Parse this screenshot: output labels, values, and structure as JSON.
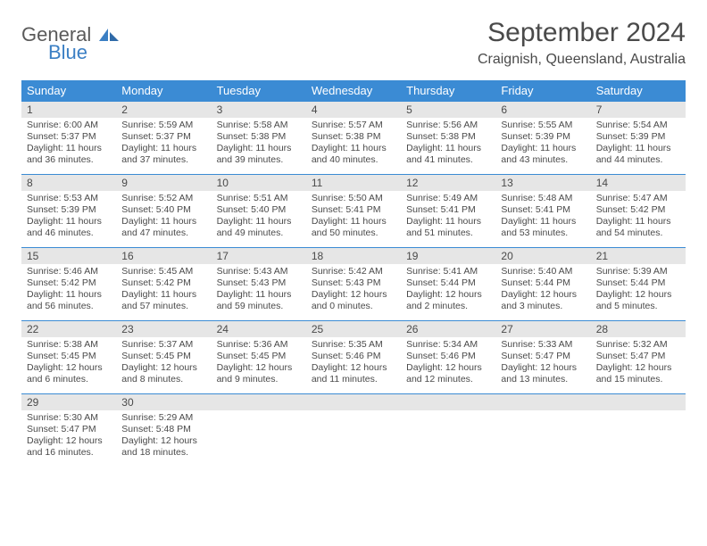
{
  "logo": {
    "text1": "General",
    "text2": "Blue"
  },
  "title": "September 2024",
  "location": "Craignish, Queensland, Australia",
  "colors": {
    "header_bg": "#3b8bd4",
    "header_text": "#ffffff",
    "daynum_bg": "#e6e6e6",
    "border": "#3b8bd4",
    "text": "#4a4a4a",
    "logo_blue": "#3b7fc4"
  },
  "weekdays": [
    "Sunday",
    "Monday",
    "Tuesday",
    "Wednesday",
    "Thursday",
    "Friday",
    "Saturday"
  ],
  "weeks": [
    [
      {
        "day": "1",
        "sunrise": "Sunrise: 6:00 AM",
        "sunset": "Sunset: 5:37 PM",
        "daylight1": "Daylight: 11 hours",
        "daylight2": "and 36 minutes."
      },
      {
        "day": "2",
        "sunrise": "Sunrise: 5:59 AM",
        "sunset": "Sunset: 5:37 PM",
        "daylight1": "Daylight: 11 hours",
        "daylight2": "and 37 minutes."
      },
      {
        "day": "3",
        "sunrise": "Sunrise: 5:58 AM",
        "sunset": "Sunset: 5:38 PM",
        "daylight1": "Daylight: 11 hours",
        "daylight2": "and 39 minutes."
      },
      {
        "day": "4",
        "sunrise": "Sunrise: 5:57 AM",
        "sunset": "Sunset: 5:38 PM",
        "daylight1": "Daylight: 11 hours",
        "daylight2": "and 40 minutes."
      },
      {
        "day": "5",
        "sunrise": "Sunrise: 5:56 AM",
        "sunset": "Sunset: 5:38 PM",
        "daylight1": "Daylight: 11 hours",
        "daylight2": "and 41 minutes."
      },
      {
        "day": "6",
        "sunrise": "Sunrise: 5:55 AM",
        "sunset": "Sunset: 5:39 PM",
        "daylight1": "Daylight: 11 hours",
        "daylight2": "and 43 minutes."
      },
      {
        "day": "7",
        "sunrise": "Sunrise: 5:54 AM",
        "sunset": "Sunset: 5:39 PM",
        "daylight1": "Daylight: 11 hours",
        "daylight2": "and 44 minutes."
      }
    ],
    [
      {
        "day": "8",
        "sunrise": "Sunrise: 5:53 AM",
        "sunset": "Sunset: 5:39 PM",
        "daylight1": "Daylight: 11 hours",
        "daylight2": "and 46 minutes."
      },
      {
        "day": "9",
        "sunrise": "Sunrise: 5:52 AM",
        "sunset": "Sunset: 5:40 PM",
        "daylight1": "Daylight: 11 hours",
        "daylight2": "and 47 minutes."
      },
      {
        "day": "10",
        "sunrise": "Sunrise: 5:51 AM",
        "sunset": "Sunset: 5:40 PM",
        "daylight1": "Daylight: 11 hours",
        "daylight2": "and 49 minutes."
      },
      {
        "day": "11",
        "sunrise": "Sunrise: 5:50 AM",
        "sunset": "Sunset: 5:41 PM",
        "daylight1": "Daylight: 11 hours",
        "daylight2": "and 50 minutes."
      },
      {
        "day": "12",
        "sunrise": "Sunrise: 5:49 AM",
        "sunset": "Sunset: 5:41 PM",
        "daylight1": "Daylight: 11 hours",
        "daylight2": "and 51 minutes."
      },
      {
        "day": "13",
        "sunrise": "Sunrise: 5:48 AM",
        "sunset": "Sunset: 5:41 PM",
        "daylight1": "Daylight: 11 hours",
        "daylight2": "and 53 minutes."
      },
      {
        "day": "14",
        "sunrise": "Sunrise: 5:47 AM",
        "sunset": "Sunset: 5:42 PM",
        "daylight1": "Daylight: 11 hours",
        "daylight2": "and 54 minutes."
      }
    ],
    [
      {
        "day": "15",
        "sunrise": "Sunrise: 5:46 AM",
        "sunset": "Sunset: 5:42 PM",
        "daylight1": "Daylight: 11 hours",
        "daylight2": "and 56 minutes."
      },
      {
        "day": "16",
        "sunrise": "Sunrise: 5:45 AM",
        "sunset": "Sunset: 5:42 PM",
        "daylight1": "Daylight: 11 hours",
        "daylight2": "and 57 minutes."
      },
      {
        "day": "17",
        "sunrise": "Sunrise: 5:43 AM",
        "sunset": "Sunset: 5:43 PM",
        "daylight1": "Daylight: 11 hours",
        "daylight2": "and 59 minutes."
      },
      {
        "day": "18",
        "sunrise": "Sunrise: 5:42 AM",
        "sunset": "Sunset: 5:43 PM",
        "daylight1": "Daylight: 12 hours",
        "daylight2": "and 0 minutes."
      },
      {
        "day": "19",
        "sunrise": "Sunrise: 5:41 AM",
        "sunset": "Sunset: 5:44 PM",
        "daylight1": "Daylight: 12 hours",
        "daylight2": "and 2 minutes."
      },
      {
        "day": "20",
        "sunrise": "Sunrise: 5:40 AM",
        "sunset": "Sunset: 5:44 PM",
        "daylight1": "Daylight: 12 hours",
        "daylight2": "and 3 minutes."
      },
      {
        "day": "21",
        "sunrise": "Sunrise: 5:39 AM",
        "sunset": "Sunset: 5:44 PM",
        "daylight1": "Daylight: 12 hours",
        "daylight2": "and 5 minutes."
      }
    ],
    [
      {
        "day": "22",
        "sunrise": "Sunrise: 5:38 AM",
        "sunset": "Sunset: 5:45 PM",
        "daylight1": "Daylight: 12 hours",
        "daylight2": "and 6 minutes."
      },
      {
        "day": "23",
        "sunrise": "Sunrise: 5:37 AM",
        "sunset": "Sunset: 5:45 PM",
        "daylight1": "Daylight: 12 hours",
        "daylight2": "and 8 minutes."
      },
      {
        "day": "24",
        "sunrise": "Sunrise: 5:36 AM",
        "sunset": "Sunset: 5:45 PM",
        "daylight1": "Daylight: 12 hours",
        "daylight2": "and 9 minutes."
      },
      {
        "day": "25",
        "sunrise": "Sunrise: 5:35 AM",
        "sunset": "Sunset: 5:46 PM",
        "daylight1": "Daylight: 12 hours",
        "daylight2": "and 11 minutes."
      },
      {
        "day": "26",
        "sunrise": "Sunrise: 5:34 AM",
        "sunset": "Sunset: 5:46 PM",
        "daylight1": "Daylight: 12 hours",
        "daylight2": "and 12 minutes."
      },
      {
        "day": "27",
        "sunrise": "Sunrise: 5:33 AM",
        "sunset": "Sunset: 5:47 PM",
        "daylight1": "Daylight: 12 hours",
        "daylight2": "and 13 minutes."
      },
      {
        "day": "28",
        "sunrise": "Sunrise: 5:32 AM",
        "sunset": "Sunset: 5:47 PM",
        "daylight1": "Daylight: 12 hours",
        "daylight2": "and 15 minutes."
      }
    ],
    [
      {
        "day": "29",
        "sunrise": "Sunrise: 5:30 AM",
        "sunset": "Sunset: 5:47 PM",
        "daylight1": "Daylight: 12 hours",
        "daylight2": "and 16 minutes."
      },
      {
        "day": "30",
        "sunrise": "Sunrise: 5:29 AM",
        "sunset": "Sunset: 5:48 PM",
        "daylight1": "Daylight: 12 hours",
        "daylight2": "and 18 minutes."
      },
      {
        "empty": true
      },
      {
        "empty": true
      },
      {
        "empty": true
      },
      {
        "empty": true
      },
      {
        "empty": true
      }
    ]
  ]
}
